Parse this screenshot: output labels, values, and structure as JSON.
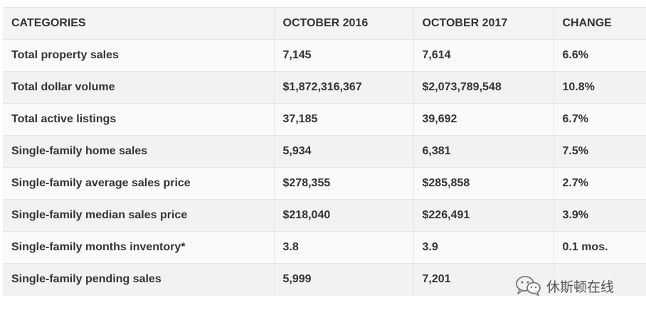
{
  "table": {
    "headers": [
      "CATEGORIES",
      "OCTOBER 2016",
      "OCTOBER 2017",
      "CHANGE"
    ],
    "rows": [
      [
        "Total property sales",
        "7,145",
        "7,614",
        "6.6%"
      ],
      [
        "Total dollar volume",
        "$1,872,316,367",
        "$2,073,789,548",
        "10.8%"
      ],
      [
        "Total active listings",
        "37,185",
        "39,692",
        "6.7%"
      ],
      [
        "Single-family home sales",
        "5,934",
        "6,381",
        "7.5%"
      ],
      [
        "Single-family average sales price",
        "$278,355",
        "$285,858",
        "2.7%"
      ],
      [
        "Single-family median sales price",
        "$218,040",
        "$226,491",
        "3.9%"
      ],
      [
        "Single-family months inventory*",
        "3.8",
        "3.9",
        "0.1 mos."
      ],
      [
        "Single-family pending sales",
        "5,999",
        "7,201",
        ""
      ]
    ]
  },
  "watermark": {
    "icon": "wechat-icon",
    "text": "休斯顿在线"
  }
}
